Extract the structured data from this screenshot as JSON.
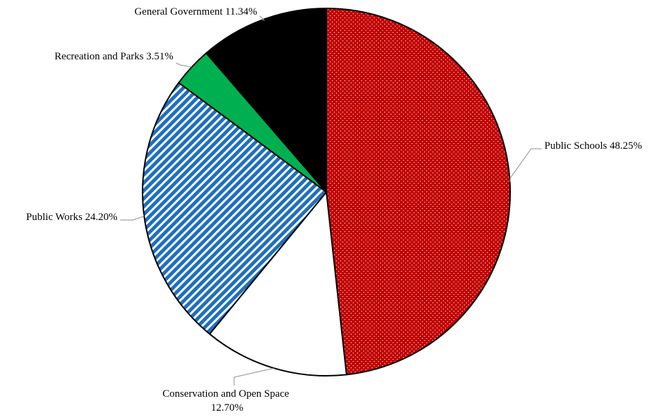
{
  "chart_data": {
    "type": "pie",
    "title": "",
    "slices": [
      {
        "name": "Public Schools",
        "value": 48.25,
        "label_value": "48.25%",
        "color": "#c00000",
        "pattern": "dots"
      },
      {
        "name": "Conservation and Open Space",
        "value": 12.7,
        "label_value": "12.70%",
        "color": "#ffffff",
        "pattern": "none"
      },
      {
        "name": "Public Works",
        "value": 24.2,
        "label_value": "24.20%",
        "color": "#1f6fbf",
        "pattern": "diagonal-stripes"
      },
      {
        "name": "Recreation and Parks",
        "value": 3.51,
        "label_value": "3.51%",
        "color": "#00b050",
        "pattern": "none"
      },
      {
        "name": "General Government",
        "value": 11.34,
        "label_value": "11.34%",
        "color": "#000000",
        "pattern": "none"
      }
    ],
    "start": "12 o'clock",
    "direction": "clockwise",
    "legend": "none",
    "data_labels": "outside with leader lines"
  }
}
